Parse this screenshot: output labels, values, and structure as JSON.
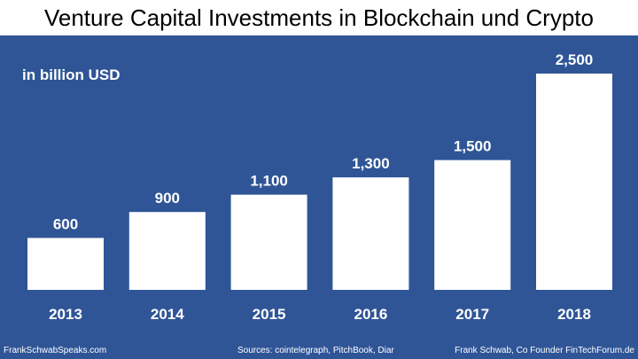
{
  "chart_data": {
    "type": "bar",
    "title": "Venture Capital Investments in Blockchain und Crypto",
    "unit_label": "in billion USD",
    "categories": [
      "2013",
      "2014",
      "2015",
      "2016",
      "2017",
      "2018"
    ],
    "values": [
      600,
      900,
      1100,
      1300,
      1500,
      2500
    ],
    "value_labels": [
      "600",
      "900",
      "1,100",
      "1,300",
      "1,500",
      "2,500"
    ],
    "ylim": [
      0,
      2500
    ],
    "xlabel": "",
    "ylabel": "",
    "grid": false
  },
  "footer": {
    "left": "FrankSchwabSpeaks.com",
    "center": "Sources: cointelegraph, PitchBook, Diar",
    "right": "Frank Schwab, Co Founder FinTechForum.de"
  },
  "colors": {
    "background": "#2f5597",
    "bar": "#ffffff",
    "text": "#ffffff",
    "title": "#000000"
  }
}
